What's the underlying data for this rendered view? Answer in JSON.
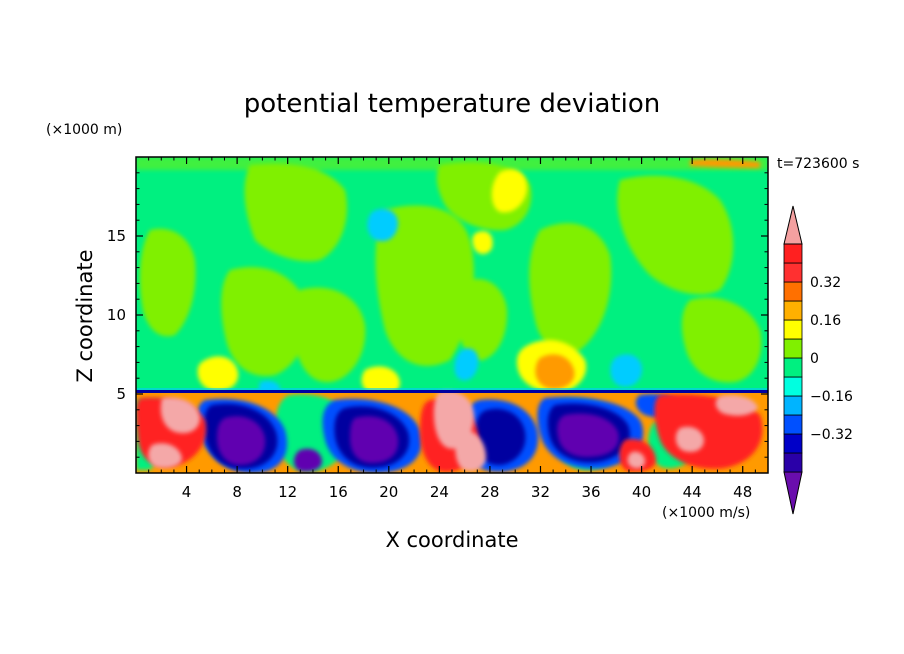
{
  "chart_data": {
    "type": "heatmap",
    "title": "potential temperature deviation",
    "xlabel": "X coordinate",
    "ylabel": "Z coordinate",
    "x_unit": "(×1000 m/s)",
    "y_unit": "(×1000 m)",
    "time_label": "t=723600 s",
    "xlim": [
      0,
      50
    ],
    "ylim": [
      0,
      20
    ],
    "x_ticks": [
      4,
      8,
      12,
      16,
      20,
      24,
      28,
      32,
      36,
      40,
      44,
      48
    ],
    "y_ticks": [
      5,
      10,
      15
    ],
    "x_tick_labels": [
      "4",
      "8",
      "12",
      "16",
      "20",
      "24",
      "28",
      "32",
      "36",
      "40",
      "44",
      "48"
    ],
    "y_tick_labels": [
      "5",
      "10",
      "15"
    ],
    "colorbar": {
      "labels": [
        "0.32",
        "0.16",
        "0",
        "−0.16",
        "−0.32"
      ],
      "label_values": [
        0.32,
        0.16,
        0,
        -0.16,
        -0.32
      ],
      "levels": [
        -0.48,
        -0.4,
        -0.32,
        -0.24,
        -0.16,
        -0.08,
        0,
        0.08,
        0.16,
        0.24,
        0.32,
        0.4,
        0.48
      ],
      "colors": [
        "#6a0dad",
        "#2a00a8",
        "#0000c8",
        "#0050ff",
        "#00b4ff",
        "#00ffe0",
        "#00f080",
        "#80f000",
        "#ffff00",
        "#ffb000",
        "#ff7000",
        "#ff3030",
        "#ff2020",
        "#f4a0a0"
      ]
    },
    "palette": {
      "pink": "#f4a8a8",
      "red": "#ff2020",
      "orange_red": "#ff5a00",
      "orange": "#ff9a00",
      "yellow": "#ffff00",
      "lime": "#80f000",
      "green": "#00f080",
      "cyan": "#00ccff",
      "blue": "#0050ff",
      "navy": "#0000a0",
      "purple": "#6000b0"
    }
  }
}
